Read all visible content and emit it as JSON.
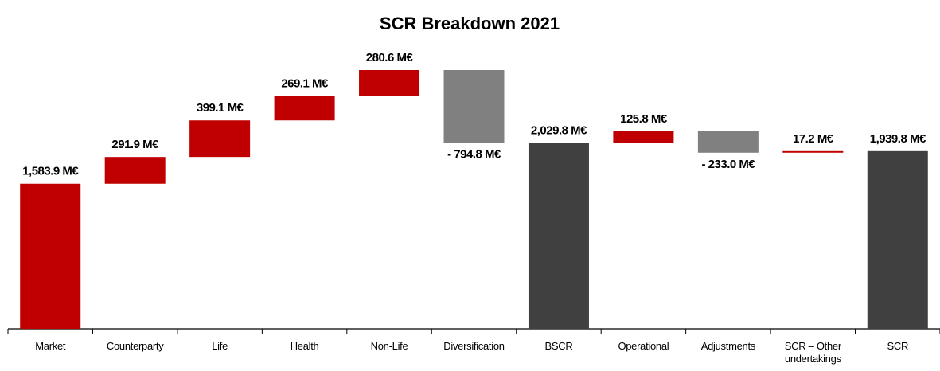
{
  "chart_data": {
    "type": "waterfall",
    "title": "SCR Breakdown 2021",
    "categories": [
      "Market",
      "Counterparty",
      "Life",
      "Health",
      "Non-Life",
      "Diversification",
      "BSCR",
      "Operational",
      "Adjustments",
      "SCR – Other undertakings",
      "SCR"
    ],
    "values": [
      1583.9,
      291.9,
      399.1,
      269.1,
      280.6,
      -794.8,
      2029.8,
      125.8,
      -233.0,
      17.2,
      1939.8
    ],
    "value_labels": [
      "1,583.9 M€",
      "291.9 M€",
      "399.1 M€",
      "269.1 M€",
      "280.6 M€",
      "- 794.8 M€",
      "2,029.8 M€",
      "125.8 M€",
      "- 233.0 M€",
      "17.2 M€",
      "1,939.8 M€"
    ],
    "measure": [
      "relative",
      "relative",
      "relative",
      "relative",
      "relative",
      "relative",
      "total",
      "relative",
      "relative",
      "relative",
      "total"
    ],
    "colors": [
      "#c00000",
      "#c00000",
      "#c00000",
      "#c00000",
      "#c00000",
      "#808080",
      "#404040",
      "#c00000",
      "#808080",
      "#c00000",
      "#404040"
    ]
  }
}
